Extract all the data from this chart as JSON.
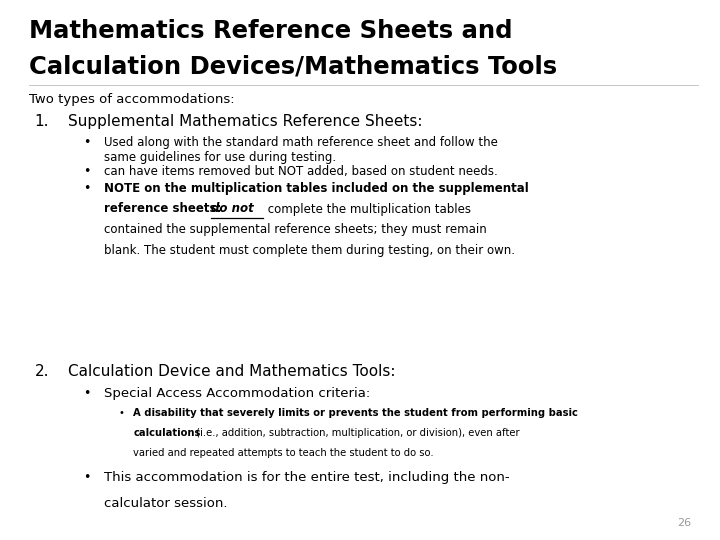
{
  "title_line1": "Mathematics Reference Sheets and",
  "title_line2": "Calculation Devices/Mathematics Tools",
  "bg_color": "#ffffff",
  "text_color": "#000000",
  "page_number": "26",
  "intro": "Two types of accommodations:",
  "item1_label": "1.",
  "item1_text": "Supplemental Mathematics Reference Sheets:",
  "bullet1a": "Used along with the standard math reference sheet and follow the\nsame guidelines for use during testing.",
  "bullet1b": "can have items removed but NOT added, based on student needs.",
  "bullet1c_bold1": "NOTE on the multiplication tables included on the supplemental",
  "bullet1c_bold2": "reference sheets: ",
  "bullet1c_italic": "do not",
  "bullet1c_normal": " complete the multiplication tables",
  "bullet1c_cont1": "contained the supplemental reference sheets; they must remain",
  "bullet1c_cont2": "blank. The student must complete them during testing, on their own.",
  "item2_label": "2.",
  "item2_text": "Calculation Device and Mathematics Tools:",
  "bullet2a": "Special Access Accommodation criteria:",
  "subbullet_bold": "A disability that severely limits or prevents the student from performing basic",
  "subbullet_bold2": "calculations",
  "subbullet_normal": " (i.e., addition, subtraction, multiplication, or division), even after",
  "subbullet_normal2": "varied and repeated attempts to teach the student to do so.",
  "bullet2b_line1": "This accommodation is for the entire test, including the non-",
  "bullet2b_line2": "calculator session."
}
